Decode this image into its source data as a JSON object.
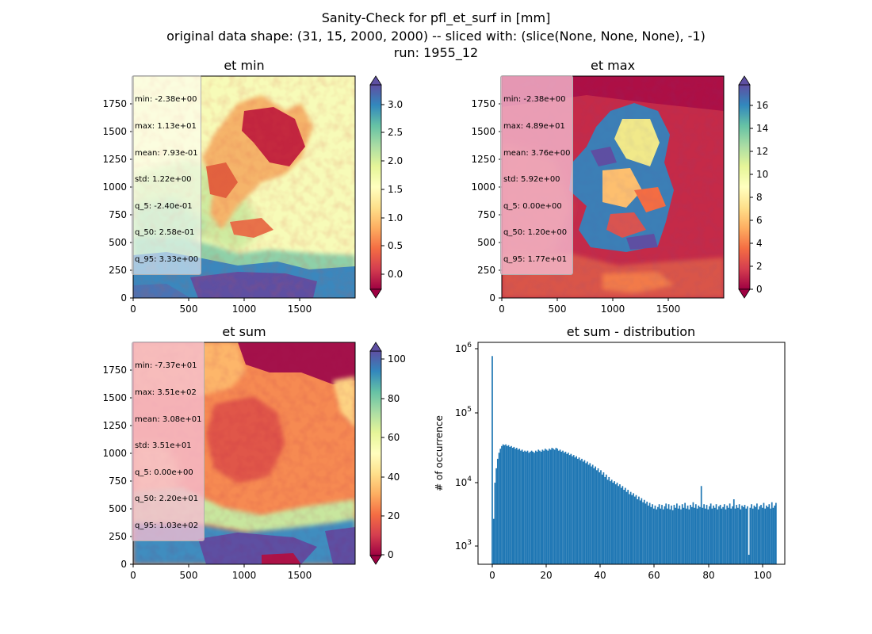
{
  "figure": {
    "title_line1": "Sanity-Check for pfl_et_surf in [mm]",
    "title_line2": "original data shape: (31, 15, 2000, 2000) -- sliced with: (slice(None, None, None), -1)",
    "title_line3": "run: 1955_12"
  },
  "colors": {
    "spectral_low": "#9e0142",
    "spectral_mid": "#ffffbf",
    "spectral_high": "#5e4fa2",
    "histogram_bar": "#1f77b4"
  },
  "chart_data": [
    {
      "type": "heatmap",
      "title": "et min",
      "colormap": "Spectral",
      "xlim": [
        0,
        2000
      ],
      "ylim": [
        0,
        2000
      ],
      "xticks": [
        "0",
        "500",
        "1000",
        "1500"
      ],
      "yticks": [
        "0",
        "250",
        "500",
        "750",
        "1000",
        "1250",
        "1500",
        "1750"
      ],
      "colorbar_range": [
        -0.25,
        3.35
      ],
      "colorbar_ticks": [
        "0.0",
        "0.5",
        "1.0",
        "1.5",
        "2.0",
        "2.5",
        "3.0"
      ],
      "colorbar_extend": "both",
      "stats": [
        "min: -2.38e+00",
        "max: 1.13e+01",
        "mean: 7.93e-01",
        "std: 1.22e+00",
        "q_5: -2.40e-01",
        "q_50: 2.58e-01",
        "q_95: 3.33e+00"
      ],
      "stats_box_style": "light"
    },
    {
      "type": "heatmap",
      "title": "et max",
      "colormap": "Spectral",
      "xlim": [
        0,
        2000
      ],
      "ylim": [
        0,
        2000
      ],
      "xticks": [
        "0",
        "500",
        "1000",
        "1500"
      ],
      "yticks": [
        "0",
        "250",
        "500",
        "750",
        "1000",
        "1250",
        "1500",
        "1750"
      ],
      "colorbar_range": [
        0,
        17.8
      ],
      "colorbar_ticks": [
        "0",
        "2",
        "4",
        "6",
        "8",
        "10",
        "12",
        "14",
        "16"
      ],
      "colorbar_extend": "both",
      "stats": [
        "min: -2.38e+00",
        "max: 4.89e+01",
        "mean: 3.76e+00",
        "std: 5.92e+00",
        "q_5: 0.00e+00",
        "q_50: 1.20e+00",
        "q_95: 1.77e+01"
      ],
      "stats_box_style": "pink"
    },
    {
      "type": "heatmap",
      "title": "et sum",
      "colormap": "Spectral",
      "xlim": [
        0,
        2000
      ],
      "ylim": [
        0,
        2000
      ],
      "xticks": [
        "0",
        "500",
        "1000",
        "1500"
      ],
      "yticks": [
        "0",
        "250",
        "500",
        "750",
        "1000",
        "1250",
        "1500",
        "1750"
      ],
      "colorbar_range": [
        -2,
        106
      ],
      "colorbar_ticks": [
        "0",
        "20",
        "40",
        "60",
        "80",
        "100"
      ],
      "colorbar_extend": "both",
      "stats": [
        "min: -7.37e+01",
        "max: 3.51e+02",
        "mean: 3.08e+01",
        "std: 3.51e+01",
        "q_5: 0.00e+00",
        "q_50: 2.20e+01",
        "q_95: 1.03e+02"
      ],
      "stats_box_style": "pink"
    },
    {
      "type": "bar",
      "title": "et sum - distribution",
      "xlabel": "",
      "ylabel": "# of occurrence",
      "ylog": true,
      "xlim": [
        -5,
        108
      ],
      "ylim": [
        500,
        1300000
      ],
      "xticks": [
        "0",
        "20",
        "40",
        "60",
        "80",
        "100"
      ],
      "yticks": [
        "10^3",
        "10^4",
        "10^5",
        "10^6"
      ],
      "bin_width": 0.5,
      "bins_x_start": 0,
      "counts": [
        800000,
        2500,
        9000,
        15000,
        21000,
        26000,
        30000,
        33000,
        35000,
        34000,
        35000,
        33000,
        34000,
        32000,
        33000,
        31000,
        32000,
        30000,
        31000,
        29000,
        30000,
        28000,
        29000,
        27000,
        28000,
        27000,
        28000,
        26000,
        27000,
        28000,
        27000,
        26000,
        28000,
        27000,
        29000,
        28000,
        27000,
        29000,
        28000,
        30000,
        29000,
        28000,
        30000,
        29000,
        31000,
        30000,
        29000,
        31000,
        30000,
        28000,
        29000,
        27000,
        28000,
        26000,
        27000,
        25000,
        26000,
        24000,
        25000,
        23000,
        24000,
        22000,
        23000,
        21000,
        22000,
        20000,
        21000,
        19000,
        20000,
        18000,
        19000,
        17000,
        18000,
        16000,
        17000,
        15000,
        16000,
        14000,
        15000,
        13000,
        14000,
        12000,
        13000,
        11000,
        12000,
        10000,
        11000,
        9500,
        10000,
        9000,
        9500,
        8500,
        9000,
        8000,
        8500,
        7500,
        8000,
        7000,
        7500,
        6500,
        7000,
        6000,
        6500,
        5800,
        6200,
        5500,
        5800,
        5000,
        5500,
        4800,
        5200,
        4500,
        4900,
        4300,
        4600,
        4000,
        4400,
        3800,
        4200,
        3600,
        4000,
        3500,
        3800,
        4200,
        3600,
        4100,
        3500,
        3900,
        4300,
        3600,
        4200,
        3500,
        4000,
        3400,
        4100,
        3700,
        4300,
        3600,
        4000,
        3500,
        4200,
        3700,
        4400,
        3600,
        4000,
        3500,
        4100,
        3800,
        4500,
        3700,
        4200,
        3600,
        4000,
        3800,
        8000,
        3700,
        4200,
        3600,
        4100,
        3500,
        3900,
        4300,
        3600,
        4000,
        3700,
        4200,
        3500,
        3900,
        4100,
        3600,
        3800,
        4200,
        3500,
        4000,
        3700,
        4300,
        3600,
        3900,
        5000,
        3600,
        4100,
        3700,
        4200,
        3500,
        4000,
        3800,
        4100,
        3600,
        3900,
        700,
        3700,
        4200,
        3600,
        4000,
        3800,
        4300,
        3500,
        3900,
        4100,
        3700,
        4400,
        3600,
        4000,
        3800,
        4200,
        3600,
        4500,
        3700,
        4000,
        4400
      ]
    }
  ]
}
